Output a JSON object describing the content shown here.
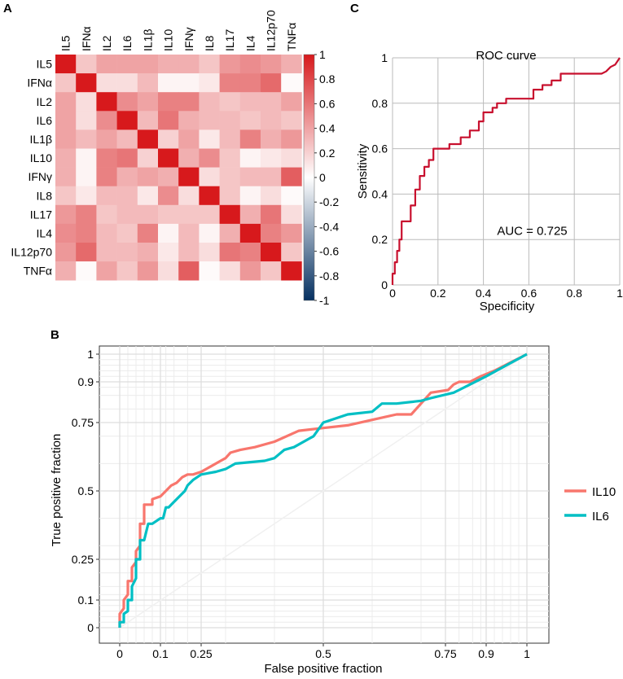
{
  "panels": {
    "a": "A",
    "b": "B",
    "c": "C"
  },
  "chart_data": [
    {
      "type": "heatmap",
      "labels": [
        "IL5",
        "IFNα",
        "IL2",
        "IL6",
        "IL1β",
        "IL10",
        "IFNγ",
        "IL8",
        "IL17",
        "IL4",
        "IL12p70",
        "TNFα"
      ],
      "matrix": [
        [
          1.0,
          0.25,
          0.4,
          0.4,
          0.4,
          0.35,
          0.35,
          0.25,
          0.45,
          0.5,
          0.45,
          0.35
        ],
        [
          0.25,
          1.0,
          0.15,
          0.15,
          0.3,
          0.05,
          0.05,
          0.1,
          0.55,
          0.55,
          0.65,
          0.02
        ],
        [
          0.4,
          0.15,
          1.0,
          0.5,
          0.4,
          0.55,
          0.55,
          0.3,
          0.25,
          0.3,
          0.3,
          0.4
        ],
        [
          0.4,
          0.15,
          0.5,
          1.0,
          0.3,
          0.6,
          0.35,
          0.3,
          0.3,
          0.25,
          0.3,
          0.25
        ],
        [
          0.4,
          0.3,
          0.4,
          0.3,
          1.0,
          0.2,
          0.4,
          0.1,
          0.3,
          0.55,
          0.35,
          0.45
        ],
        [
          0.35,
          0.05,
          0.55,
          0.6,
          0.2,
          1.0,
          0.35,
          0.5,
          0.25,
          0.05,
          0.1,
          0.15
        ],
        [
          0.35,
          0.05,
          0.55,
          0.35,
          0.4,
          0.35,
          1.0,
          0.15,
          0.25,
          0.3,
          0.3,
          0.7
        ],
        [
          0.25,
          0.1,
          0.3,
          0.3,
          0.1,
          0.5,
          0.15,
          1.0,
          0.25,
          0.05,
          0.15,
          0.02
        ],
        [
          0.45,
          0.55,
          0.25,
          0.3,
          0.3,
          0.25,
          0.25,
          0.25,
          1.0,
          0.35,
          0.6,
          0.15
        ],
        [
          0.5,
          0.55,
          0.3,
          0.25,
          0.55,
          0.05,
          0.3,
          0.05,
          0.35,
          1.0,
          0.55,
          0.45
        ],
        [
          0.45,
          0.65,
          0.3,
          0.3,
          0.35,
          0.1,
          0.3,
          0.15,
          0.6,
          0.55,
          1.0,
          0.25
        ],
        [
          0.35,
          0.02,
          0.4,
          0.25,
          0.45,
          0.15,
          0.7,
          0.02,
          0.15,
          0.45,
          0.25,
          1.0
        ]
      ],
      "colorbar": {
        "ticks": [
          "1",
          "0.8",
          "0.6",
          "0.4",
          "0.2",
          "0",
          "-0.2",
          "-0.4",
          "-0.6",
          "-0.8",
          "-1"
        ],
        "range": [
          -1,
          1
        ]
      },
      "colors": {
        "low": "#053061",
        "mid": "#ffffff",
        "high": "#d7191c"
      }
    },
    {
      "type": "line",
      "title": "",
      "xlabel": "False positive fraction",
      "ylabel": "True positive fraction",
      "xticks": [
        "0",
        "0.1",
        "0.25",
        "0.5",
        "0.75",
        "0.9",
        "1"
      ],
      "yticks": [
        "0",
        "0.1",
        "0.25",
        "0.5",
        "0.75",
        "0.9",
        "1"
      ],
      "tick_values": [
        0,
        0.1,
        0.25,
        0.5,
        0.75,
        0.9,
        1
      ],
      "series": [
        {
          "name": "IL10",
          "color": "#f8766d",
          "x": [
            0,
            0,
            0.01,
            0.01,
            0.02,
            0.02,
            0.03,
            0.03,
            0.04,
            0.04,
            0.05,
            0.05,
            0.06,
            0.06,
            0.07,
            0.08,
            0.08,
            0.1,
            0.12,
            0.13,
            0.14,
            0.16,
            0.18,
            0.2,
            0.22,
            0.25,
            0.27,
            0.29,
            0.3,
            0.31,
            0.33,
            0.36,
            0.4,
            0.45,
            0.5,
            0.55,
            0.6,
            0.65,
            0.68,
            0.7,
            0.72,
            0.76,
            0.78,
            0.8,
            0.84,
            0.88,
            0.92,
            0.96,
            1
          ],
          "y": [
            0,
            0.05,
            0.07,
            0.1,
            0.12,
            0.17,
            0.17,
            0.22,
            0.24,
            0.28,
            0.3,
            0.38,
            0.38,
            0.45,
            0.45,
            0.45,
            0.47,
            0.48,
            0.5,
            0.51,
            0.52,
            0.53,
            0.55,
            0.56,
            0.56,
            0.57,
            0.59,
            0.61,
            0.62,
            0.64,
            0.65,
            0.66,
            0.68,
            0.72,
            0.73,
            0.74,
            0.76,
            0.78,
            0.78,
            0.82,
            0.86,
            0.87,
            0.89,
            0.9,
            0.9,
            0.92,
            0.94,
            0.97,
            1
          ]
        },
        {
          "name": "IL6",
          "color": "#00bfc4",
          "x": [
            0,
            0,
            0.01,
            0.01,
            0.02,
            0.02,
            0.03,
            0.03,
            0.04,
            0.04,
            0.05,
            0.05,
            0.06,
            0.07,
            0.08,
            0.1,
            0.11,
            0.12,
            0.13,
            0.15,
            0.17,
            0.19,
            0.2,
            0.22,
            0.25,
            0.28,
            0.3,
            0.32,
            0.38,
            0.4,
            0.42,
            0.44,
            0.48,
            0.5,
            0.55,
            0.6,
            0.62,
            0.65,
            0.7,
            0.72,
            0.78,
            0.8,
            0.84,
            0.9,
            1
          ],
          "y": [
            0,
            0.02,
            0.02,
            0.05,
            0.06,
            0.1,
            0.1,
            0.15,
            0.18,
            0.25,
            0.25,
            0.32,
            0.32,
            0.38,
            0.38,
            0.4,
            0.4,
            0.44,
            0.44,
            0.46,
            0.48,
            0.5,
            0.52,
            0.54,
            0.56,
            0.57,
            0.58,
            0.6,
            0.61,
            0.62,
            0.65,
            0.66,
            0.7,
            0.75,
            0.78,
            0.79,
            0.82,
            0.82,
            0.83,
            0.84,
            0.86,
            0.87,
            0.89,
            0.92,
            1
          ]
        }
      ]
    },
    {
      "type": "line",
      "title": "ROC curve",
      "xlabel": "Specificity",
      "ylabel": "Sensitivity",
      "xticks": [
        "0",
        "0.2",
        "0.4",
        "0.6",
        "0.8",
        "1"
      ],
      "yticks": [
        "0",
        "0.2",
        "0.4",
        "0.6",
        "0.8",
        "1"
      ],
      "xlim": [
        0,
        1
      ],
      "ylim": [
        0,
        1
      ],
      "annotation": "AUC = 0.725",
      "series": [
        {
          "name": "ROC",
          "color": "#c8102e",
          "x": [
            0,
            0,
            0.01,
            0.01,
            0.02,
            0.02,
            0.03,
            0.03,
            0.04,
            0.04,
            0.08,
            0.08,
            0.1,
            0.1,
            0.12,
            0.12,
            0.14,
            0.14,
            0.16,
            0.16,
            0.18,
            0.18,
            0.25,
            0.25,
            0.3,
            0.3,
            0.34,
            0.34,
            0.38,
            0.38,
            0.4,
            0.4,
            0.44,
            0.44,
            0.46,
            0.46,
            0.5,
            0.5,
            0.62,
            0.62,
            0.66,
            0.66,
            0.7,
            0.7,
            0.74,
            0.74,
            0.92,
            0.94,
            0.96,
            0.98,
            1
          ],
          "y": [
            0,
            0.05,
            0.05,
            0.1,
            0.1,
            0.15,
            0.15,
            0.2,
            0.2,
            0.28,
            0.28,
            0.35,
            0.35,
            0.42,
            0.42,
            0.48,
            0.48,
            0.52,
            0.52,
            0.55,
            0.55,
            0.6,
            0.6,
            0.62,
            0.62,
            0.65,
            0.65,
            0.68,
            0.68,
            0.72,
            0.72,
            0.76,
            0.76,
            0.78,
            0.78,
            0.8,
            0.8,
            0.82,
            0.82,
            0.86,
            0.86,
            0.88,
            0.88,
            0.9,
            0.9,
            0.93,
            0.93,
            0.94,
            0.96,
            0.97,
            1
          ]
        }
      ]
    }
  ]
}
